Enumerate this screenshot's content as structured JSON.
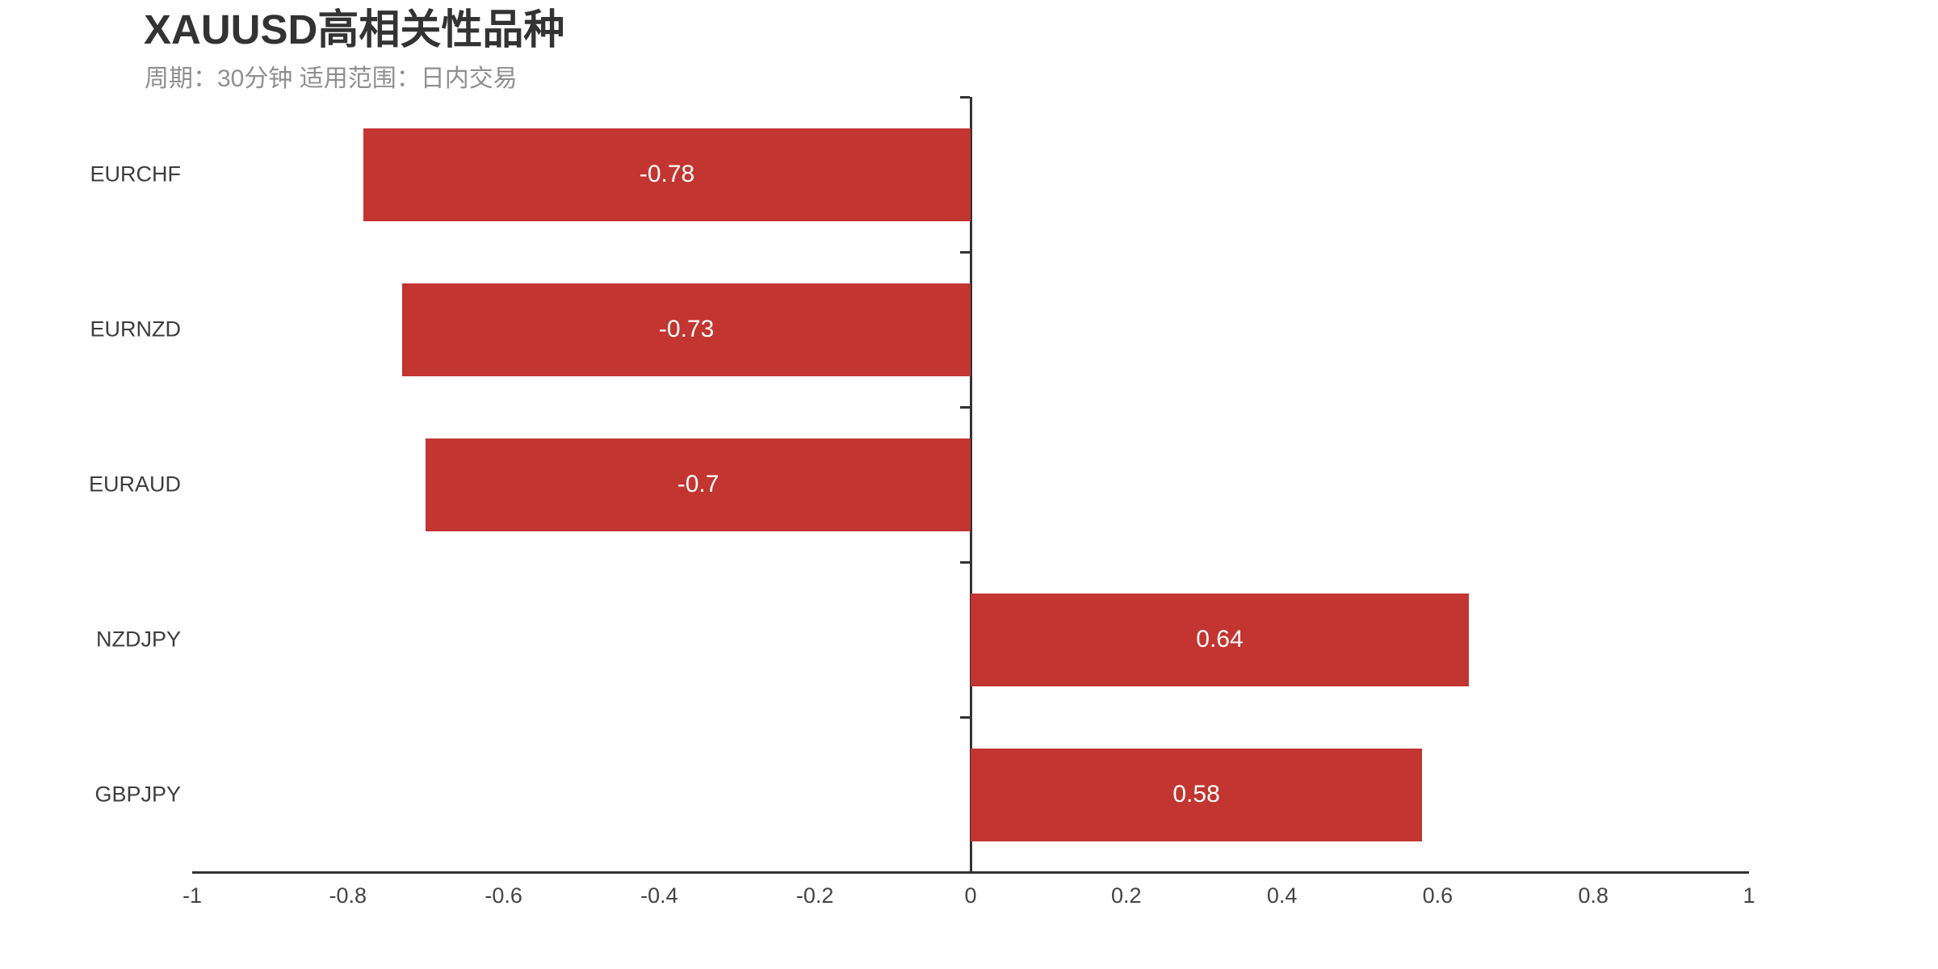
{
  "page": {
    "background": "#ffffff"
  },
  "chart_data": {
    "type": "bar",
    "orientation": "horizontal",
    "title": "XAUUSD高相关性品种",
    "subtitle": "周期：30分钟 适用范围：日内交易",
    "categories": [
      "EURCHF",
      "EURNZD",
      "EURAUD",
      "NZDJPY",
      "GBPJPY"
    ],
    "values": [
      -0.78,
      -0.73,
      -0.7,
      0.64,
      0.58
    ],
    "value_labels": [
      "-0.78",
      "-0.73",
      "-0.7",
      "0.64",
      "0.58"
    ],
    "xlabel": "",
    "ylabel": "",
    "xlim": [
      -1,
      1
    ],
    "x_ticks": [
      -1,
      -0.8,
      -0.6,
      -0.4,
      -0.2,
      0,
      0.2,
      0.4,
      0.6,
      0.8,
      1
    ],
    "x_tick_labels": [
      "-1",
      "-0.8",
      "-0.6",
      "-0.4",
      "-0.2",
      "0",
      "0.2",
      "0.4",
      "0.6",
      "0.8",
      "1"
    ],
    "grid": false,
    "legend": false,
    "value_labels_position": "inside-center",
    "colors": {
      "bar": "#c23531",
      "value_label": "#ffffff",
      "title": "#333333",
      "subtitle": "#8f8f8f",
      "axis": "#333333",
      "tick_label": "#444444",
      "category_label": "#3d3d3d"
    }
  }
}
